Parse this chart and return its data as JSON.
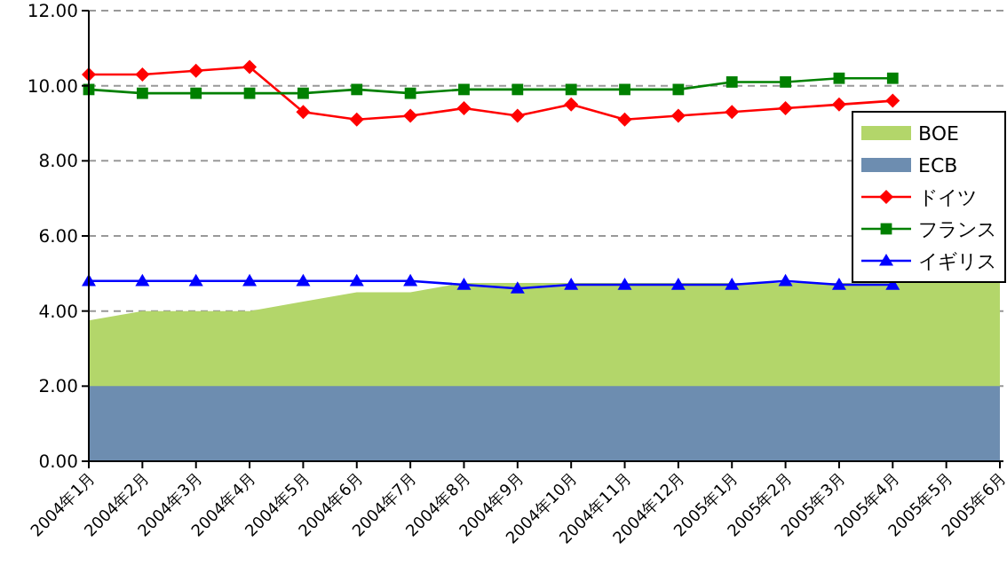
{
  "chart_data": {
    "type": "line",
    "categories": [
      "2004年1月",
      "2004年2月",
      "2004年3月",
      "2004年4月",
      "2004年5月",
      "2004年6月",
      "2004年7月",
      "2004年8月",
      "2004年9月",
      "2004年10月",
      "2004年11月",
      "2004年12月",
      "2005年1月",
      "2005年2月",
      "2005年3月",
      "2005年4月",
      "2005年5月",
      "2005年6月"
    ],
    "series": [
      {
        "name": "BOE",
        "type": "area",
        "color": "#b3d66a",
        "values": [
          3.75,
          4.0,
          4.0,
          4.0,
          4.25,
          4.5,
          4.5,
          4.75,
          4.75,
          4.75,
          4.75,
          4.75,
          4.75,
          4.75,
          4.75,
          4.75,
          4.75,
          4.75
        ]
      },
      {
        "name": "ECB",
        "type": "area",
        "color": "#6d8db0",
        "values": [
          2.0,
          2.0,
          2.0,
          2.0,
          2.0,
          2.0,
          2.0,
          2.0,
          2.0,
          2.0,
          2.0,
          2.0,
          2.0,
          2.0,
          2.0,
          2.0,
          2.0,
          2.0
        ]
      },
      {
        "name": "ドイツ",
        "type": "line",
        "marker": "diamond",
        "color": "#ff0000",
        "values": [
          10.3,
          10.3,
          10.4,
          10.5,
          9.3,
          9.1,
          9.2,
          9.4,
          9.2,
          9.5,
          9.1,
          9.2,
          9.3,
          9.4,
          9.5,
          9.6,
          null,
          null
        ]
      },
      {
        "name": "フランス",
        "type": "line",
        "marker": "square",
        "color": "#008000",
        "values": [
          9.9,
          9.8,
          9.8,
          9.8,
          9.8,
          9.9,
          9.8,
          9.9,
          9.9,
          9.9,
          9.9,
          9.9,
          10.1,
          10.1,
          10.2,
          10.2,
          null,
          null
        ]
      },
      {
        "name": "イギリス",
        "type": "line",
        "marker": "triangle",
        "color": "#0000ff",
        "values": [
          4.8,
          4.8,
          4.8,
          4.8,
          4.8,
          4.8,
          4.8,
          4.7,
          4.6,
          4.7,
          4.7,
          4.7,
          4.7,
          4.8,
          4.7,
          4.7,
          null,
          null
        ]
      }
    ],
    "ylim": [
      0,
      12
    ],
    "yticks": [
      {
        "value": 0,
        "label": "0.00"
      },
      {
        "value": 2,
        "label": "2.00"
      },
      {
        "value": 4,
        "label": "4.00"
      },
      {
        "value": 6,
        "label": "6.00"
      },
      {
        "value": 8,
        "label": "8.00"
      },
      {
        "value": 10,
        "label": "10.00"
      },
      {
        "value": 12,
        "label": "12.00"
      }
    ],
    "grid": "y",
    "legend": "right"
  }
}
